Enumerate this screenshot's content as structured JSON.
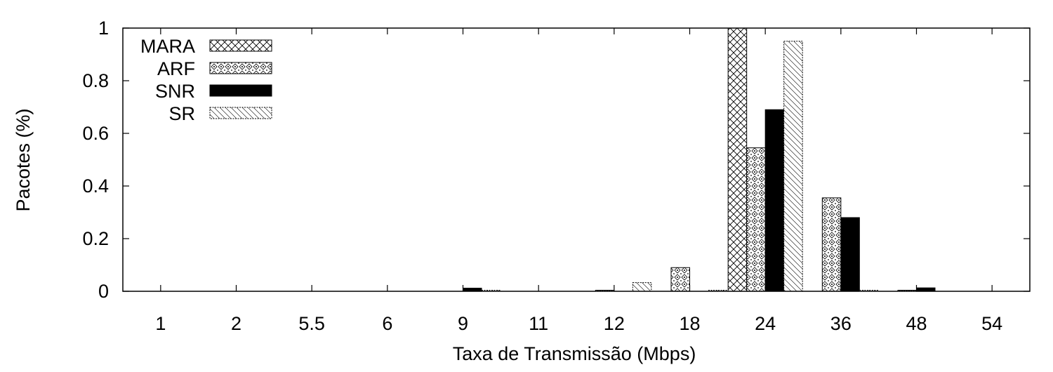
{
  "chart_data": {
    "type": "bar",
    "title": "",
    "xlabel": "Taxa de Transmissão (Mbps)",
    "ylabel": "Pacotes (%)",
    "ylim": [
      0,
      1
    ],
    "yticks": [
      0,
      0.2,
      0.4,
      0.6,
      0.8,
      1
    ],
    "ytick_labels": [
      "0",
      "0.2",
      "0.4",
      "0.6",
      "0.8",
      "1"
    ],
    "categories": [
      "1",
      "2",
      "5.5",
      "6",
      "9",
      "11",
      "12",
      "18",
      "24",
      "36",
      "48",
      "54"
    ],
    "grid": false,
    "legend_position": "top-left",
    "series": [
      {
        "name": "MARA",
        "pattern": "crosshatch",
        "color": "#000000",
        "values": [
          0,
          0,
          0,
          0,
          0,
          0,
          0,
          0,
          1.0,
          0,
          0,
          0
        ]
      },
      {
        "name": "ARF",
        "pattern": "diamond-dots",
        "color": "#000000",
        "values": [
          0,
          0,
          0,
          0,
          0,
          0,
          0.004,
          0.09,
          0.545,
          0.355,
          0.004,
          0
        ]
      },
      {
        "name": "SNR",
        "pattern": "solid",
        "color": "#000000",
        "values": [
          0,
          0,
          0,
          0,
          0.012,
          0,
          0,
          0,
          0.69,
          0.28,
          0.013,
          0
        ]
      },
      {
        "name": "SR",
        "pattern": "diagonal",
        "color": "#000000",
        "values": [
          0,
          0,
          0,
          0,
          0.004,
          0,
          0.033,
          0.004,
          0.95,
          0.004,
          0,
          0
        ]
      }
    ]
  }
}
